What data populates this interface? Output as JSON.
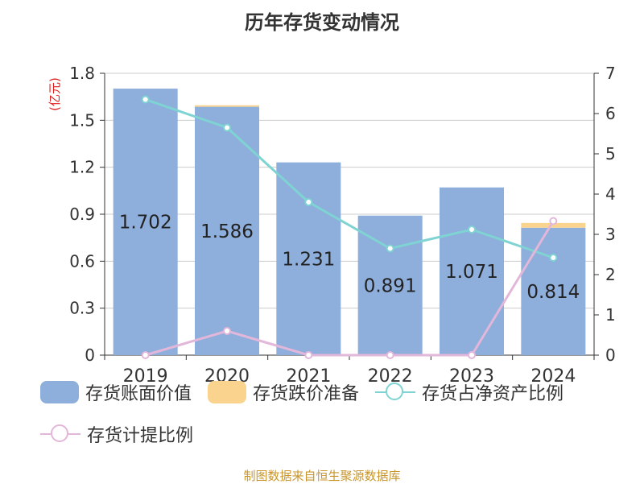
{
  "title": "历年存货变动情况",
  "unit_label": "(亿元)",
  "source": "制图数据来自恒生聚源数据库",
  "colors": {
    "book_value": "#8eaedb",
    "provision": "#fad48f",
    "net_assets_ratio": "#7fd3d3",
    "provision_ratio": "#e2b7d9"
  },
  "chart_data": {
    "type": "bar",
    "categories": [
      "2019",
      "2020",
      "2021",
      "2022",
      "2023",
      "2024"
    ],
    "series": [
      {
        "name": "存货账面价值",
        "type": "bar",
        "axis": "left",
        "values": [
          1.702,
          1.586,
          1.231,
          0.891,
          1.071,
          0.814
        ],
        "labels": [
          "1.702",
          "1.586",
          "1.231",
          "0.891",
          "1.071",
          "0.814"
        ]
      },
      {
        "name": "存货跌价准备",
        "type": "bar",
        "axis": "left",
        "stacked": true,
        "values": [
          0,
          0.01,
          0,
          0,
          0,
          0.03
        ]
      },
      {
        "name": "存货占净资产比例",
        "type": "line",
        "axis": "right",
        "values": [
          6.35,
          5.65,
          3.8,
          2.65,
          3.12,
          2.42
        ]
      },
      {
        "name": "存货计提比例",
        "type": "line",
        "axis": "right",
        "values": [
          0,
          0.6,
          0,
          0,
          0,
          3.33
        ]
      }
    ],
    "y_left": {
      "min": 0,
      "max": 1.8,
      "ticks": [
        "0",
        "0.3",
        "0.6",
        "0.9",
        "1.2",
        "1.5",
        "1.8"
      ]
    },
    "y_right": {
      "min": 0,
      "max": 7,
      "ticks": [
        "0",
        "1",
        "2",
        "3",
        "4",
        "5",
        "6",
        "7"
      ]
    },
    "grid": true,
    "legend_position": "bottom"
  }
}
